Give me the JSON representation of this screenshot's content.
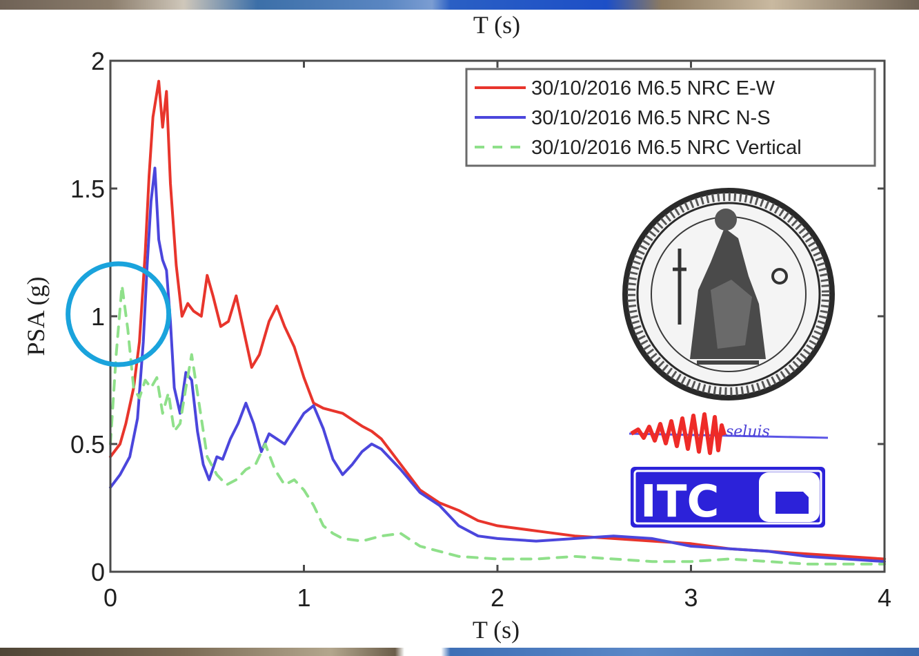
{
  "chart_data": {
    "type": "line",
    "top_label": "T (s)",
    "xlabel": "T (s)",
    "ylabel": "PSA (g)",
    "xlim": [
      0,
      4
    ],
    "ylim": [
      0,
      2
    ],
    "x_ticks": [
      "0",
      "1",
      "2",
      "3",
      "4"
    ],
    "y_ticks": [
      "0",
      "0.5",
      "1",
      "1.5",
      "2"
    ],
    "grid": false,
    "legend_position": "top-right",
    "series": [
      {
        "name": "30/10/2016 M6.5 NRC E-W",
        "color": "#e8352c",
        "dash": "solid",
        "x": [
          0.0,
          0.05,
          0.08,
          0.12,
          0.15,
          0.18,
          0.2,
          0.22,
          0.25,
          0.27,
          0.29,
          0.31,
          0.34,
          0.37,
          0.4,
          0.43,
          0.47,
          0.5,
          0.53,
          0.57,
          0.61,
          0.65,
          0.69,
          0.73,
          0.77,
          0.82,
          0.86,
          0.9,
          0.95,
          1.0,
          1.05,
          1.1,
          1.2,
          1.3,
          1.35,
          1.4,
          1.5,
          1.6,
          1.7,
          1.8,
          1.9,
          2.0,
          2.2,
          2.4,
          2.6,
          2.8,
          3.0,
          3.2,
          3.4,
          3.6,
          3.8,
          4.0
        ],
        "y": [
          0.45,
          0.5,
          0.58,
          0.72,
          0.9,
          1.25,
          1.55,
          1.78,
          1.92,
          1.74,
          1.88,
          1.52,
          1.2,
          1.0,
          1.05,
          1.02,
          1.0,
          1.16,
          1.08,
          0.96,
          0.98,
          1.08,
          0.94,
          0.8,
          0.85,
          0.98,
          1.04,
          0.96,
          0.88,
          0.76,
          0.66,
          0.64,
          0.62,
          0.57,
          0.55,
          0.52,
          0.42,
          0.32,
          0.27,
          0.24,
          0.2,
          0.18,
          0.16,
          0.14,
          0.13,
          0.12,
          0.11,
          0.09,
          0.08,
          0.07,
          0.06,
          0.05
        ]
      },
      {
        "name": "30/10/2016 M6.5 NRC N-S",
        "color": "#4b46dc",
        "dash": "solid",
        "x": [
          0.0,
          0.05,
          0.1,
          0.14,
          0.17,
          0.19,
          0.21,
          0.23,
          0.25,
          0.27,
          0.29,
          0.31,
          0.33,
          0.36,
          0.39,
          0.42,
          0.45,
          0.48,
          0.51,
          0.55,
          0.58,
          0.62,
          0.66,
          0.7,
          0.74,
          0.78,
          0.82,
          0.86,
          0.9,
          0.95,
          1.0,
          1.05,
          1.1,
          1.15,
          1.2,
          1.25,
          1.3,
          1.35,
          1.4,
          1.5,
          1.6,
          1.7,
          1.8,
          1.9,
          2.0,
          2.2,
          2.4,
          2.6,
          2.8,
          3.0,
          3.2,
          3.4,
          3.6,
          3.8,
          4.0
        ],
        "y": [
          0.33,
          0.38,
          0.45,
          0.6,
          0.9,
          1.2,
          1.45,
          1.58,
          1.3,
          1.22,
          1.18,
          0.98,
          0.72,
          0.62,
          0.78,
          0.75,
          0.55,
          0.42,
          0.36,
          0.45,
          0.44,
          0.52,
          0.58,
          0.66,
          0.58,
          0.47,
          0.54,
          0.52,
          0.5,
          0.56,
          0.62,
          0.65,
          0.56,
          0.44,
          0.38,
          0.42,
          0.47,
          0.5,
          0.48,
          0.4,
          0.31,
          0.26,
          0.18,
          0.14,
          0.13,
          0.12,
          0.13,
          0.14,
          0.13,
          0.1,
          0.09,
          0.08,
          0.06,
          0.05,
          0.04
        ]
      },
      {
        "name": "30/10/2016 M6.5 NRC Vertical",
        "color": "#8fe08a",
        "dash": "dashed",
        "x": [
          0.0,
          0.03,
          0.06,
          0.09,
          0.12,
          0.15,
          0.18,
          0.21,
          0.24,
          0.27,
          0.3,
          0.33,
          0.36,
          0.39,
          0.42,
          0.45,
          0.5,
          0.55,
          0.6,
          0.65,
          0.7,
          0.75,
          0.8,
          0.85,
          0.9,
          0.95,
          1.0,
          1.05,
          1.1,
          1.15,
          1.2,
          1.3,
          1.4,
          1.5,
          1.6,
          1.8,
          2.0,
          2.2,
          2.4,
          2.6,
          2.8,
          3.0,
          3.2,
          3.4,
          3.6,
          3.8,
          4.0
        ],
        "y": [
          0.5,
          0.85,
          1.12,
          0.95,
          0.72,
          0.68,
          0.75,
          0.72,
          0.76,
          0.62,
          0.7,
          0.55,
          0.58,
          0.72,
          0.85,
          0.7,
          0.45,
          0.38,
          0.34,
          0.36,
          0.4,
          0.42,
          0.5,
          0.4,
          0.34,
          0.36,
          0.32,
          0.26,
          0.18,
          0.15,
          0.13,
          0.12,
          0.14,
          0.15,
          0.1,
          0.06,
          0.05,
          0.05,
          0.06,
          0.05,
          0.04,
          0.04,
          0.05,
          0.04,
          0.03,
          0.03,
          0.03
        ]
      }
    ],
    "annotations": [
      {
        "type": "circle",
        "x": 0.02,
        "y": 1.0,
        "color": "#1aa3dc"
      }
    ],
    "logos": [
      {
        "name": "university-seal"
      },
      {
        "name": "seismograph-logo",
        "text": "seluis"
      },
      {
        "name": "itc-logo",
        "text": "ITC"
      }
    ]
  }
}
